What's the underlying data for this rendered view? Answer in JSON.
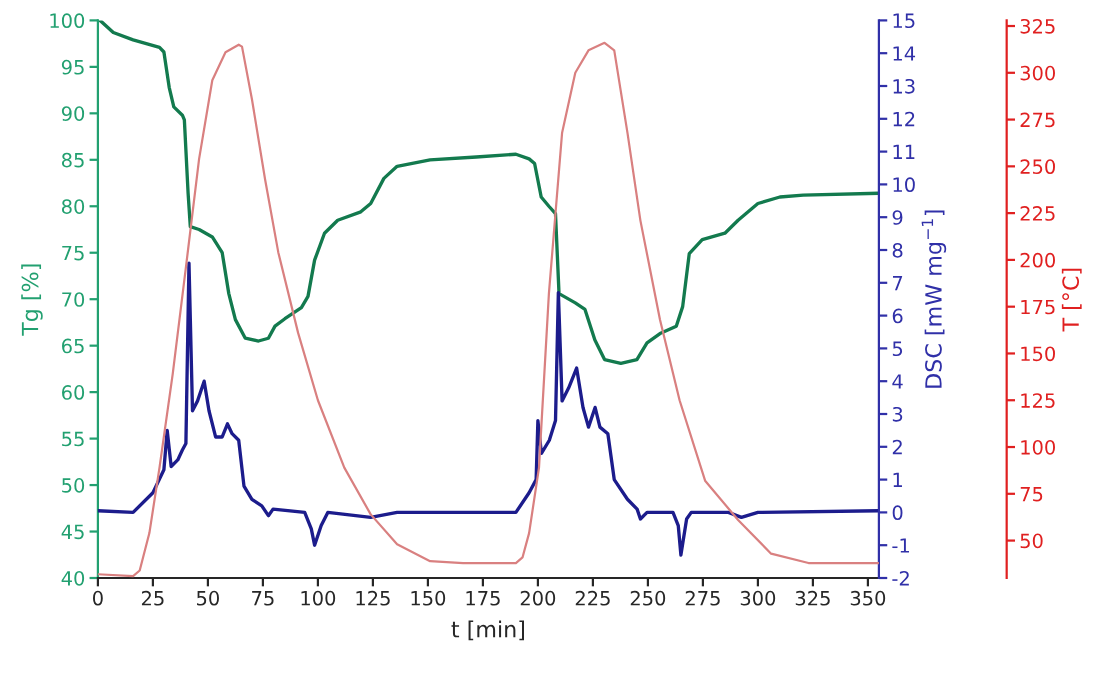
{
  "chart_data": {
    "type": "line",
    "xlabel": "t [min]",
    "ylabel": "Tg [%]",
    "y2label": "DSC [mW mg$^{−1}$]",
    "y3label": "T [°C]",
    "xlim": [
      0,
      355
    ],
    "xticks": [
      0,
      25,
      50,
      75,
      100,
      125,
      150,
      175,
      200,
      225,
      250,
      275,
      300,
      325,
      350
    ],
    "ylim": [
      40,
      100
    ],
    "yticks": [
      40,
      45,
      50,
      55,
      60,
      65,
      70,
      75,
      80,
      85,
      90,
      95,
      100
    ],
    "y2lim": [
      -2,
      15
    ],
    "y2ticks": [
      -2,
      -1,
      0,
      1,
      2,
      3,
      4,
      5,
      6,
      7,
      8,
      9,
      10,
      11,
      12,
      13,
      14,
      15
    ],
    "y3lim": [
      30,
      328
    ],
    "y3ticks": [
      50,
      75,
      100,
      125,
      150,
      175,
      200,
      225,
      250,
      275,
      300,
      325
    ],
    "grid": false,
    "legend": false,
    "series": [
      {
        "axis": "y",
        "color": "#137a4e",
        "x": [
          0,
          1,
          7,
          16,
          28,
          30,
          32.4,
          34.5,
          38.4,
          39.3,
          41,
          42,
          46,
          52,
          56.5,
          59.5,
          62.5,
          67,
          73,
          77.5,
          80.5,
          85,
          92.5,
          95.5,
          98.5,
          103,
          109,
          119.5,
          124,
          130,
          136,
          151,
          172,
          190,
          196,
          198.5,
          201.5,
          205,
          208,
          209.6,
          217,
          221.4,
          225.9,
          230.3,
          237.7,
          245,
          249.6,
          255.5,
          262.9,
          265.8,
          268.8,
          274.7,
          285,
          291,
          300,
          310,
          320.6,
          355
        ],
        "values": [
          100,
          100,
          98.7,
          97.9,
          97.1,
          96.6,
          92.8,
          90.7,
          89.8,
          89.3,
          81.4,
          77.8,
          77.5,
          76.7,
          75,
          70.6,
          67.8,
          65.8,
          65.5,
          65.8,
          67.1,
          67.9,
          69.1,
          70.3,
          74.2,
          77.1,
          78.5,
          79.4,
          80.3,
          83,
          84.3,
          85,
          85.3,
          85.6,
          85.1,
          84.6,
          81,
          80,
          79.2,
          70.6,
          69.6,
          68.9,
          65.6,
          63.5,
          63.1,
          63.5,
          65.3,
          66.3,
          67.1,
          69.2,
          74.9,
          76.4,
          77.1,
          78.5,
          80.3,
          81,
          81.2,
          81.4
        ]
      },
      {
        "axis": "y2",
        "color": "#1c1c8c",
        "x": [
          0,
          16,
          25,
          30,
          31.5,
          33.3,
          36.3,
          38.4,
          40,
          41.4,
          43,
          45.3,
          48.3,
          50.5,
          53.5,
          56.5,
          58.9,
          61,
          64,
          66.4,
          70,
          74.5,
          77.5,
          79.6,
          94,
          97,
          98.5,
          101.5,
          104.5,
          124,
          136,
          190,
          196,
          199.2,
          200,
          201.6,
          205.2,
          208,
          209.3,
          211,
          214,
          217.6,
          220.5,
          223,
          226,
          228.2,
          231.8,
          234.7,
          240.7,
          245.1,
          246.6,
          249.6,
          261.4,
          263.8,
          265,
          267.6,
          269.7,
          286.6,
          292.5,
          300,
          355
        ],
        "values": [
          0.05,
          0,
          0.6,
          1.3,
          2.5,
          1.4,
          1.6,
          1.9,
          2.1,
          7.6,
          3.1,
          3.4,
          4.0,
          3.1,
          2.3,
          2.3,
          2.7,
          2.4,
          2.2,
          0.8,
          0.4,
          0.2,
          -0.1,
          0.1,
          0,
          -0.5,
          -1.0,
          -0.4,
          0,
          -0.15,
          0,
          0,
          0.6,
          1.0,
          2.8,
          1.8,
          2.2,
          2.8,
          6.7,
          3.4,
          3.8,
          4.4,
          3.2,
          2.6,
          3.2,
          2.6,
          2.4,
          1.0,
          0.4,
          0.1,
          -0.2,
          0,
          0,
          -0.4,
          -1.3,
          -0.2,
          0,
          0,
          -0.15,
          0,
          0.05
        ]
      },
      {
        "axis": "y3",
        "color": "#d98080",
        "x": [
          0,
          16,
          19,
          23.4,
          28,
          34,
          40,
          46,
          52,
          58,
          64,
          65.5,
          70,
          76,
          82,
          91,
          100,
          112,
          124,
          136,
          151,
          166,
          190,
          193,
          196,
          200.5,
          205,
          211,
          217,
          223,
          230.3,
          234.7,
          240.7,
          246.6,
          255.5,
          264.4,
          276,
          291,
          306,
          323,
          355
        ],
        "values": [
          32,
          31,
          34,
          54,
          89,
          139,
          196,
          254,
          296,
          311,
          315,
          314,
          286,
          243,
          204,
          161,
          125,
          89,
          64,
          48,
          39,
          38,
          38,
          41,
          54,
          89,
          182,
          268,
          300,
          312,
          316,
          312,
          268,
          221,
          168,
          125,
          82,
          61,
          43,
          38,
          38
        ]
      }
    ]
  }
}
